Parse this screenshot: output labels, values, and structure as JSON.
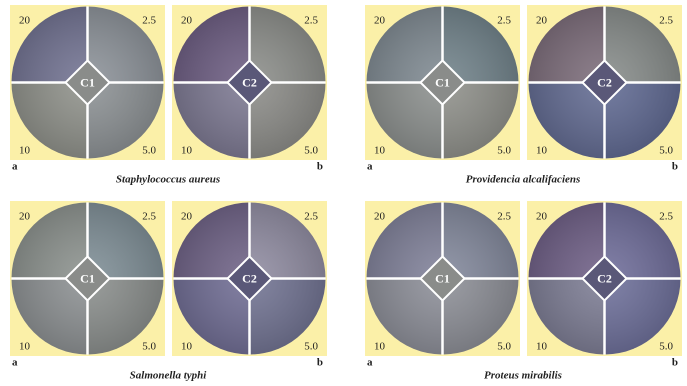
{
  "panels": [
    {
      "caption": "Staphylococcus aureus",
      "dishes": [
        {
          "label": "a",
          "center": "C1",
          "quadrants": [
            "20",
            "2.5",
            "10",
            "5.0"
          ]
        },
        {
          "label": "b",
          "center": "C2",
          "quadrants": [
            "20",
            "2.5",
            "10",
            "5.0"
          ]
        }
      ]
    },
    {
      "caption": "Providencia alcalifaciens",
      "dishes": [
        {
          "label": "a",
          "center": "C1",
          "quadrants": [
            "20",
            "2.5",
            "10",
            "5.0"
          ]
        },
        {
          "label": "b",
          "center": "C2",
          "quadrants": [
            "20",
            "2.5",
            "10",
            "5.0"
          ]
        }
      ]
    },
    {
      "caption": "Salmonella typhi",
      "dishes": [
        {
          "label": "a",
          "center": "C1",
          "quadrants": [
            "20",
            "2.5",
            "10",
            "5.0"
          ]
        },
        {
          "label": "b",
          "center": "C2",
          "quadrants": [
            "20",
            "2.5",
            "10",
            "5.0"
          ]
        }
      ]
    },
    {
      "caption": "Proteus mirabilis",
      "dishes": [
        {
          "label": "a",
          "center": "C1",
          "quadrants": [
            "20",
            "2.5",
            "10",
            "5.0"
          ]
        },
        {
          "label": "b",
          "center": "C2",
          "quadrants": [
            "20",
            "2.5",
            "10",
            "5.0"
          ]
        }
      ]
    }
  ]
}
